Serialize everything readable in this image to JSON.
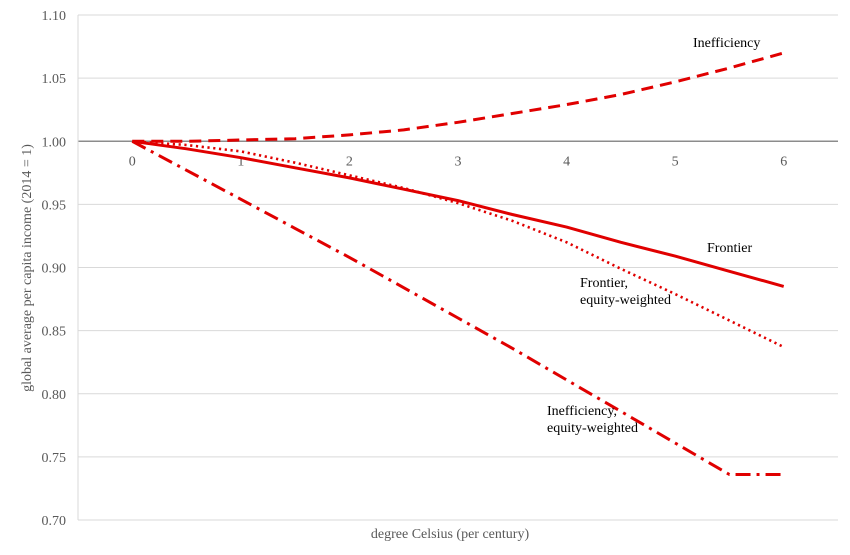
{
  "chart_data": {
    "type": "line",
    "title": "",
    "xlabel": "degree Celsius (per century)",
    "ylabel": "global average per capita income (2014 = 1)",
    "xlim": [
      -0.5,
      6.5
    ],
    "ylim": [
      0.7,
      1.1
    ],
    "x_ticks": [
      "0",
      "1",
      "2",
      "3",
      "4",
      "5",
      "6"
    ],
    "y_ticks": [
      "0.70",
      "0.75",
      "0.80",
      "0.85",
      "0.90",
      "0.95",
      "1.00",
      "1.05",
      "1.10"
    ],
    "grid": true,
    "x": [
      0,
      0.5,
      1,
      1.5,
      2,
      2.5,
      3,
      3.5,
      4,
      4.5,
      5,
      5.5,
      6
    ],
    "series": [
      {
        "name": "Inefficiency",
        "style": "dashed",
        "color": "#e00000",
        "values": [
          1.0,
          1.0,
          1.001,
          1.002,
          1.005,
          1.009,
          1.015,
          1.022,
          1.029,
          1.037,
          1.047,
          1.058,
          1.07
        ]
      },
      {
        "name": "Frontier",
        "style": "solid",
        "color": "#e00000",
        "values": [
          1.0,
          0.994,
          0.987,
          0.979,
          0.971,
          0.962,
          0.953,
          0.942,
          0.932,
          0.92,
          0.909,
          0.897,
          0.885
        ]
      },
      {
        "name": "Frontier, equity-weighted",
        "label_lines": [
          "Frontier,",
          "equity-weighted"
        ],
        "style": "dotted",
        "color": "#e00000",
        "values": [
          1.0,
          0.997,
          0.992,
          0.983,
          0.973,
          0.963,
          0.951,
          0.937,
          0.92,
          0.899,
          0.879,
          0.858,
          0.837
        ]
      },
      {
        "name": "Inefficiency, equity-weighted",
        "label_lines": [
          "Inefficiency,",
          "equity-weighted"
        ],
        "style": "dashdot",
        "color": "#e00000",
        "values": [
          1.0,
          0.977,
          0.954,
          0.931,
          0.908,
          0.884,
          0.86,
          0.836,
          0.811,
          0.786,
          0.761,
          0.736,
          0.736
        ]
      }
    ]
  }
}
